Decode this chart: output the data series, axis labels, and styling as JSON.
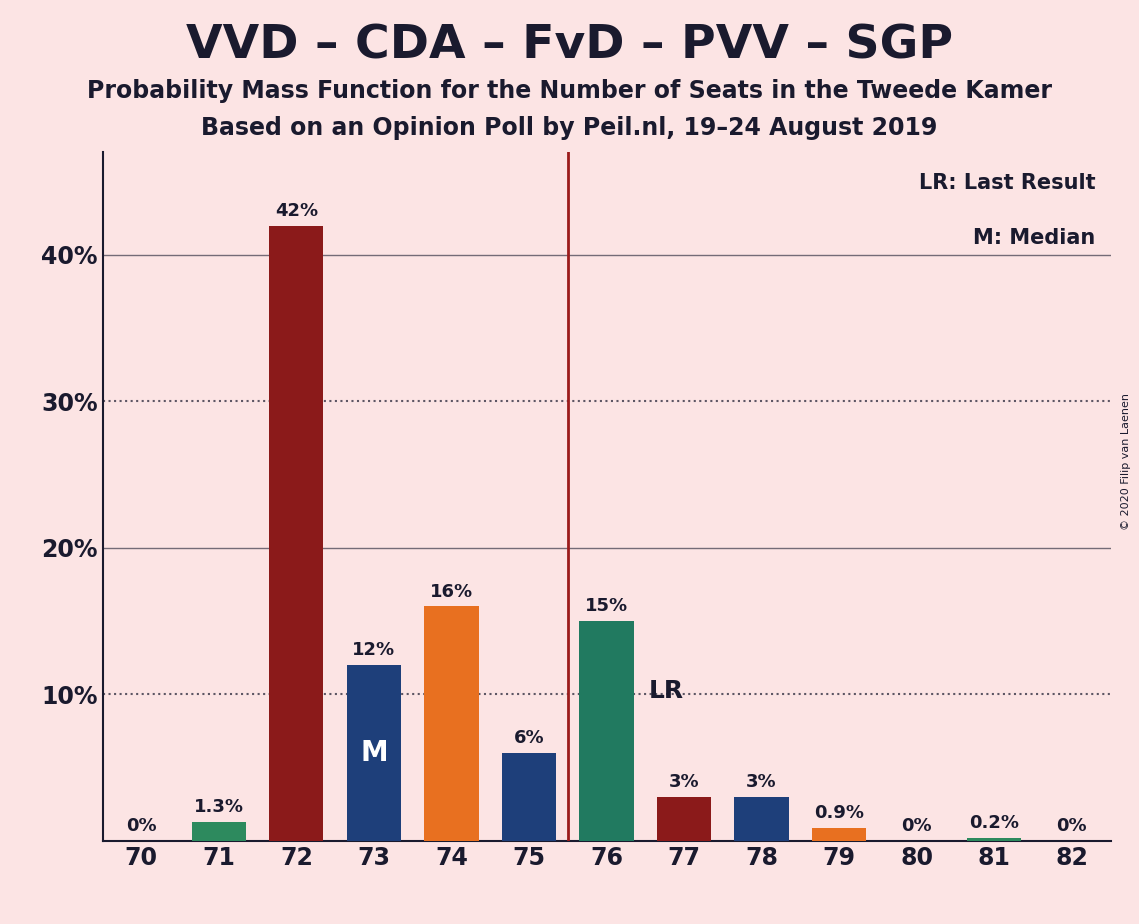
{
  "title": "VVD – CDA – FvD – PVV – SGP",
  "subtitle1": "Probability Mass Function for the Number of Seats in the Tweede Kamer",
  "subtitle2": "Based on an Opinion Poll by Peil.nl, 19–24 August 2019",
  "copyright": "© 2020 Filip van Laenen",
  "categories": [
    70,
    71,
    72,
    73,
    74,
    75,
    76,
    77,
    78,
    79,
    80,
    81,
    82
  ],
  "values": [
    0.0,
    1.3,
    42.0,
    12.0,
    16.0,
    6.0,
    15.0,
    3.0,
    3.0,
    0.9,
    0.0,
    0.2,
    0.0
  ],
  "labels": [
    "0%",
    "1.3%",
    "42%",
    "12%",
    "16%",
    "6%",
    "15%",
    "3%",
    "3%",
    "0.9%",
    "0%",
    "0.2%",
    "0%"
  ],
  "bar_colors": [
    "#fce4e4",
    "#2d8a5e",
    "#8b1a1a",
    "#1e3f7a",
    "#e87020",
    "#1e3f7a",
    "#217a60",
    "#8b1a1a",
    "#1e3f7a",
    "#e87020",
    "#fce4e4",
    "#2d8a5e",
    "#fce4e4"
  ],
  "median_bar": 73,
  "lr_bar": 76,
  "vline_x": 75.5,
  "background_color": "#fce4e4",
  "ylim": [
    0,
    47
  ],
  "yticks": [
    0,
    10,
    20,
    30,
    40
  ],
  "ytick_labels": [
    "",
    "10%",
    "20%",
    "30%",
    "40%"
  ],
  "solid_gridlines": [
    20,
    40
  ],
  "dotted_gridlines": [
    10,
    30
  ],
  "legend_lr": "LR: Last Result",
  "legend_m": "M: Median",
  "bar_width": 0.7
}
